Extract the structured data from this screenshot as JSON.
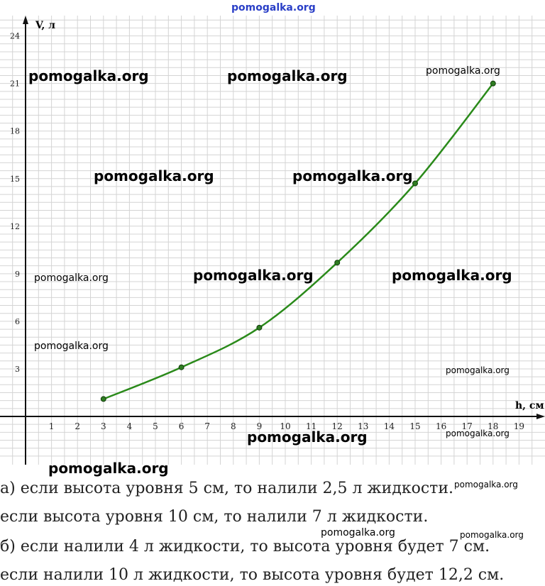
{
  "site_label": "pomogalka.org",
  "watermarks": [
    {
      "text": "pomogalka.org",
      "size": "big"
    },
    {
      "text": "pomogalka.org",
      "size": "big"
    },
    {
      "text": "pomogalka.org",
      "size": "mid"
    },
    {
      "text": "pomogalka.org",
      "size": "big"
    },
    {
      "text": "pomogalka.org",
      "size": "big"
    },
    {
      "text": "pomogalka.org",
      "size": "mid"
    },
    {
      "text": "pomogalka.org",
      "size": "big"
    },
    {
      "text": "pomogalka.org",
      "size": "big"
    },
    {
      "text": "pomogalka.org",
      "size": "mid"
    },
    {
      "text": "pomogalka.org",
      "size": "small"
    },
    {
      "text": "pomogalka.org",
      "size": "big"
    },
    {
      "text": "pomogalka.org",
      "size": "small"
    },
    {
      "text": "pomogalka.org",
      "size": "big"
    },
    {
      "text": "pomogalka.org",
      "size": "small"
    },
    {
      "text": "pomogalka.org",
      "size": "mid"
    },
    {
      "text": "pomogalka.org",
      "size": "small"
    }
  ],
  "chart_data": {
    "type": "line",
    "xlabel": "h, см",
    "ylabel": "V, л",
    "xlim": [
      0,
      19
    ],
    "ylim": [
      0,
      24
    ],
    "x_ticks": [
      1,
      2,
      3,
      4,
      5,
      6,
      7,
      8,
      9,
      10,
      11,
      12,
      13,
      14,
      15,
      16,
      17,
      18,
      19
    ],
    "y_ticks": [
      3,
      6,
      9,
      12,
      15,
      18,
      21,
      24
    ],
    "grid": true,
    "series": [
      {
        "color": "#2a8a1a",
        "points": [
          {
            "x": 3,
            "y": 1.1
          },
          {
            "x": 6,
            "y": 3.1
          },
          {
            "x": 9,
            "y": 5.6
          },
          {
            "x": 12,
            "y": 9.7
          },
          {
            "x": 15,
            "y": 14.7
          },
          {
            "x": 18,
            "y": 21
          }
        ]
      }
    ]
  },
  "answers": [
    "а) если высота уровня 5 см, то налили 2,5 л жидкости.",
    "если высота уровня 10 см, то налили 7 л жидкости.",
    "б) если налили 4 л жидкости, то высота уровня будет 7 см.",
    "если налили 10 л жидкости, то высота уровня будет 12,2 см."
  ]
}
